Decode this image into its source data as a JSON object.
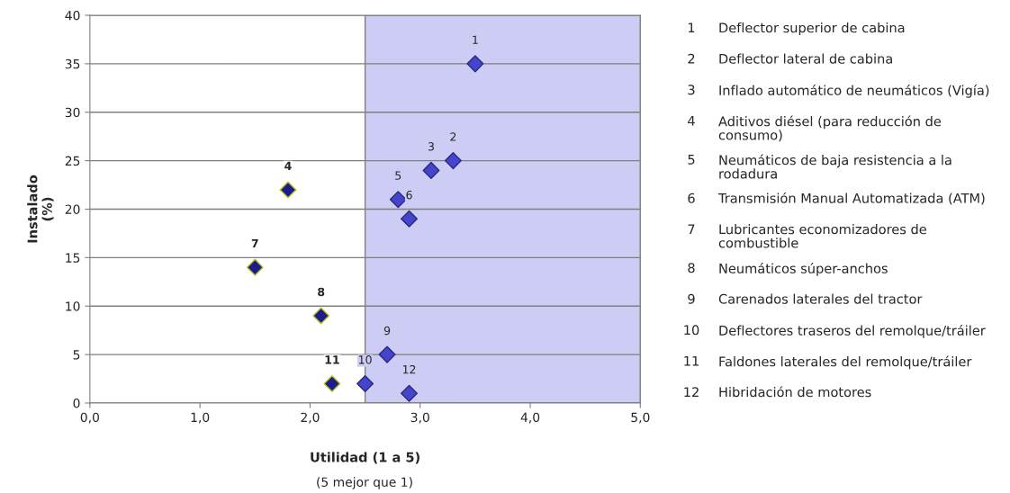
{
  "chart_data": {
    "type": "scatter",
    "xlabel": "Utilidad (1 a 5)",
    "ylabel": "Instalado\n(%)",
    "x": [
      3.5,
      3.3,
      3.1,
      1.8,
      2.8,
      2.9,
      1.5,
      2.1,
      2.7,
      2.5,
      2.2,
      2.9
    ],
    "values": [
      35,
      25,
      24,
      22,
      21,
      19,
      14,
      9,
      5,
      2,
      2,
      1
    ],
    "colors": [
      "#4444cc",
      "#4444cc",
      "#4444cc",
      "#1c1c8c",
      "#4444cc",
      "#4444cc",
      "#1c1c8c",
      "#1c1c8c",
      "#4444cc",
      "#4444cc",
      "#1c1c8c",
      "#4444cc"
    ],
    "marker": "diamond",
    "xlim": [
      0,
      5
    ],
    "ylim": [
      0,
      40
    ],
    "xticks": [
      {
        "value": 0,
        "label": "0,0"
      },
      {
        "value": 1,
        "label": "1,0"
      },
      {
        "value": 2,
        "label": "2,0"
      },
      {
        "value": 3,
        "label": "3,0"
      },
      {
        "value": 4,
        "label": "4,0"
      },
      {
        "value": 5,
        "label": "5,0"
      }
    ],
    "yticks": [
      0,
      5,
      10,
      15,
      20,
      25,
      30,
      35,
      40
    ],
    "grid": "y",
    "bands": [
      {
        "axis": "x",
        "from": 2.5,
        "to": 5,
        "color": "#ccccf5"
      }
    ],
    "annotations": [
      {
        "text": "1",
        "x": 3.5,
        "y": 35
      },
      {
        "text": "2",
        "x": 3.3,
        "y": 25
      },
      {
        "text": "3",
        "x": 3.1,
        "y": 24
      },
      {
        "text": "4",
        "x": 1.8,
        "y": 22
      },
      {
        "text": "5",
        "x": 2.8,
        "y": 21
      },
      {
        "text": "6",
        "x": 2.9,
        "y": 19
      },
      {
        "text": "7",
        "x": 1.5,
        "y": 14
      },
      {
        "text": "8",
        "x": 2.1,
        "y": 9
      },
      {
        "text": "9",
        "x": 2.7,
        "y": 5
      },
      {
        "text": "10",
        "x": 2.5,
        "y": 2
      },
      {
        "text": "11",
        "x": 2.2,
        "y": 2
      },
      {
        "text": "12",
        "x": 2.9,
        "y": 1
      },
      "(5 mejor que 1)",
      "Deflector superior de cabina",
      "Deflector lateral de cabina",
      "Inflado automático de neumáticos (Vigía)",
      "Aditivos diésel (para reducción de\nconsumo)",
      "Neumáticos de baja resistencia a la\nrodadura",
      "Transmisión Manual Automatizada (ATM)",
      "Lubricantes economizadores de\ncombustible",
      "Neumáticos súper-anchos",
      "Carenados laterales del tractor",
      "Deflectores traseros del remolque/tráiler",
      "Faldones laterales del remolque/tráiler",
      "Hibridación de motores"
    ]
  }
}
